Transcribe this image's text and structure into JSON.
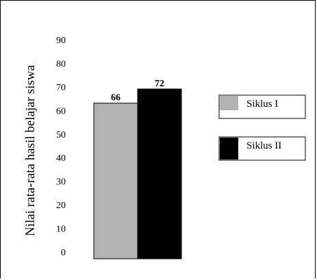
{
  "chart_data": {
    "type": "bar",
    "title": "",
    "xlabel": "",
    "ylabel": "Nilai rata-rata hasil belajar siswa",
    "ylim": [
      0,
      90
    ],
    "yticks": [
      "0",
      "10",
      "20",
      "30",
      "40",
      "50",
      "60",
      "70",
      "80",
      "90"
    ],
    "categories": [
      ""
    ],
    "series": [
      {
        "name": "Siklus I",
        "values": [
          66
        ],
        "label": "66",
        "color": "#b3b3b3"
      },
      {
        "name": "Siklus II",
        "values": [
          72
        ],
        "label": "72",
        "color": "#000000"
      }
    ],
    "legend_position": "right",
    "grid": false
  }
}
